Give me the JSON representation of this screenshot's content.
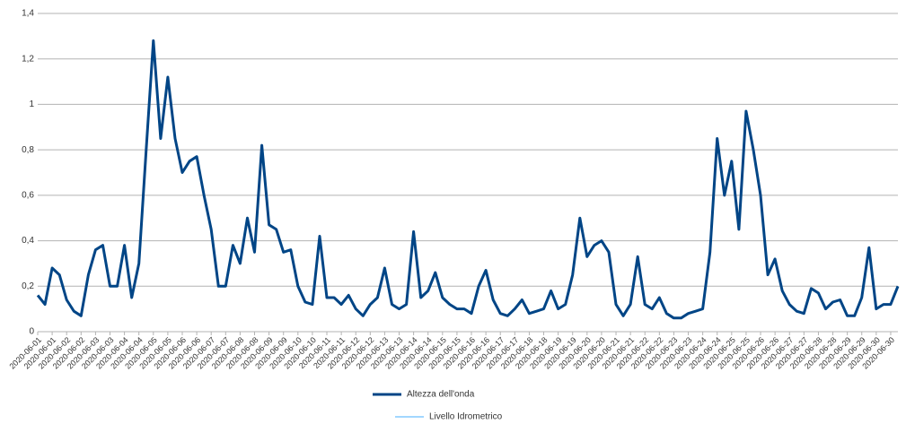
{
  "chart_data": {
    "type": "line",
    "categories": [
      "2020-06-01",
      null,
      "2020-06-01",
      null,
      "2020-06-02",
      null,
      "2020-06-02",
      null,
      "2020-06-03",
      null,
      "2020-06-03",
      null,
      "2020-06-04",
      null,
      "2020-06-04",
      null,
      "2020-06-05",
      null,
      "2020-06-05",
      null,
      "2020-06-06",
      null,
      "2020-06-06",
      null,
      "2020-06-07",
      null,
      "2020-06-07",
      null,
      "2020-06-08",
      null,
      "2020-06-08",
      null,
      "2020-06-09",
      null,
      "2020-06-09",
      null,
      "2020-06-10",
      null,
      "2020-06-10",
      null,
      "2020-06-11",
      null,
      "2020-06-11",
      null,
      "2020-06-12",
      null,
      "2020-06-12",
      null,
      "2020-06-13",
      null,
      "2020-06-13",
      null,
      "2020-06-14",
      null,
      "2020-06-14",
      null,
      "2020-06-15",
      null,
      "2020-06-15",
      null,
      "2020-06-16",
      null,
      "2020-06-16",
      null,
      "2020-06-17",
      null,
      "2020-06-17",
      null,
      "2020-06-18",
      null,
      "2020-06-18",
      null,
      "2020-06-19",
      null,
      "2020-06-19",
      null,
      "2020-06-20",
      null,
      "2020-06-20",
      null,
      "2020-06-21",
      null,
      "2020-06-21",
      null,
      "2020-06-22",
      null,
      "2020-06-22",
      null,
      "2020-06-23",
      null,
      "2020-06-23",
      null,
      "2020-06-24",
      null,
      "2020-06-24",
      null,
      "2020-06-25",
      null,
      "2020-06-25",
      null,
      "2020-06-26",
      null,
      "2020-06-26",
      null,
      "2020-06-27",
      null,
      "2020-06-27",
      null,
      "2020-06-28",
      null,
      "2020-06-28",
      null,
      "2020-06-29",
      null,
      "2020-06-29",
      null,
      "2020-06-30",
      null,
      "2020-06-30",
      null
    ],
    "series": [
      {
        "name": "Altezza dell'onda",
        "color": "#004586",
        "values": [
          0.16,
          0.12,
          0.28,
          0.25,
          0.14,
          0.09,
          0.07,
          0.25,
          0.36,
          0.38,
          0.2,
          0.2,
          0.38,
          0.15,
          0.3,
          0.8,
          1.28,
          0.85,
          1.12,
          0.85,
          0.7,
          0.75,
          0.77,
          0.6,
          0.45,
          0.2,
          0.2,
          0.38,
          0.3,
          0.5,
          0.35,
          0.82,
          0.47,
          0.45,
          0.35,
          0.36,
          0.2,
          0.13,
          0.12,
          0.42,
          0.15,
          0.15,
          0.12,
          0.16,
          0.1,
          0.07,
          0.12,
          0.15,
          0.28,
          0.12,
          0.1,
          0.12,
          0.44,
          0.15,
          0.18,
          0.26,
          0.15,
          0.12,
          0.1,
          0.1,
          0.08,
          0.2,
          0.27,
          0.14,
          0.08,
          0.07,
          0.1,
          0.14,
          0.08,
          0.09,
          0.1,
          0.18,
          0.1,
          0.12,
          0.25,
          0.5,
          0.33,
          0.38,
          0.4,
          0.35,
          0.12,
          0.07,
          0.12,
          0.33,
          0.12,
          0.1,
          0.15,
          0.08,
          0.06,
          0.06,
          0.08,
          0.09,
          0.1,
          0.35,
          0.85,
          0.6,
          0.75,
          0.45,
          0.97,
          0.8,
          0.6,
          0.25,
          0.32,
          0.18,
          0.12,
          0.09,
          0.08,
          0.19,
          0.17,
          0.1,
          0.13,
          0.14,
          0.07,
          0.07,
          0.15,
          0.37,
          0.1,
          0.12,
          0.12,
          0.2
        ]
      },
      {
        "name": "Livello  Idrometrico",
        "color": "#83caff",
        "values": [
          null,
          null,
          null,
          null,
          null,
          null,
          null,
          null,
          null,
          null,
          null,
          null,
          null,
          null,
          null,
          null,
          null,
          null,
          null,
          null,
          null,
          null,
          null,
          null,
          null,
          null,
          null,
          null,
          null,
          null,
          null,
          null,
          null,
          null,
          null,
          null,
          null,
          null,
          null,
          null,
          null,
          null,
          null,
          null,
          null,
          null,
          null,
          null,
          null,
          null,
          null,
          null,
          null,
          null,
          null,
          null,
          null,
          null,
          null,
          null,
          null,
          null,
          null,
          null,
          null,
          null,
          null,
          null,
          null,
          null,
          null,
          null,
          null,
          null,
          null,
          null,
          null,
          null,
          null,
          null,
          null,
          null,
          null,
          null,
          null,
          null,
          null,
          null,
          null,
          null,
          null,
          null,
          null,
          null,
          null,
          null,
          null,
          null,
          null,
          null,
          null,
          null,
          null,
          null,
          null,
          null,
          null,
          null,
          null,
          null,
          null,
          null,
          null,
          null,
          null,
          null,
          null,
          null,
          null,
          null
        ]
      }
    ],
    "ylim": [
      0,
      1.4
    ],
    "yticks": [
      0,
      {
        "value": 0.2,
        "label": "0,2"
      },
      {
        "value": 0.4,
        "label": "0,4"
      },
      {
        "value": 0.6,
        "label": "0,6"
      },
      {
        "value": 0.8,
        "label": "0,8"
      },
      1,
      {
        "value": 1.2,
        "label": "1,2"
      },
      {
        "value": 1.4,
        "label": "1,4"
      }
    ],
    "grid": true
  }
}
